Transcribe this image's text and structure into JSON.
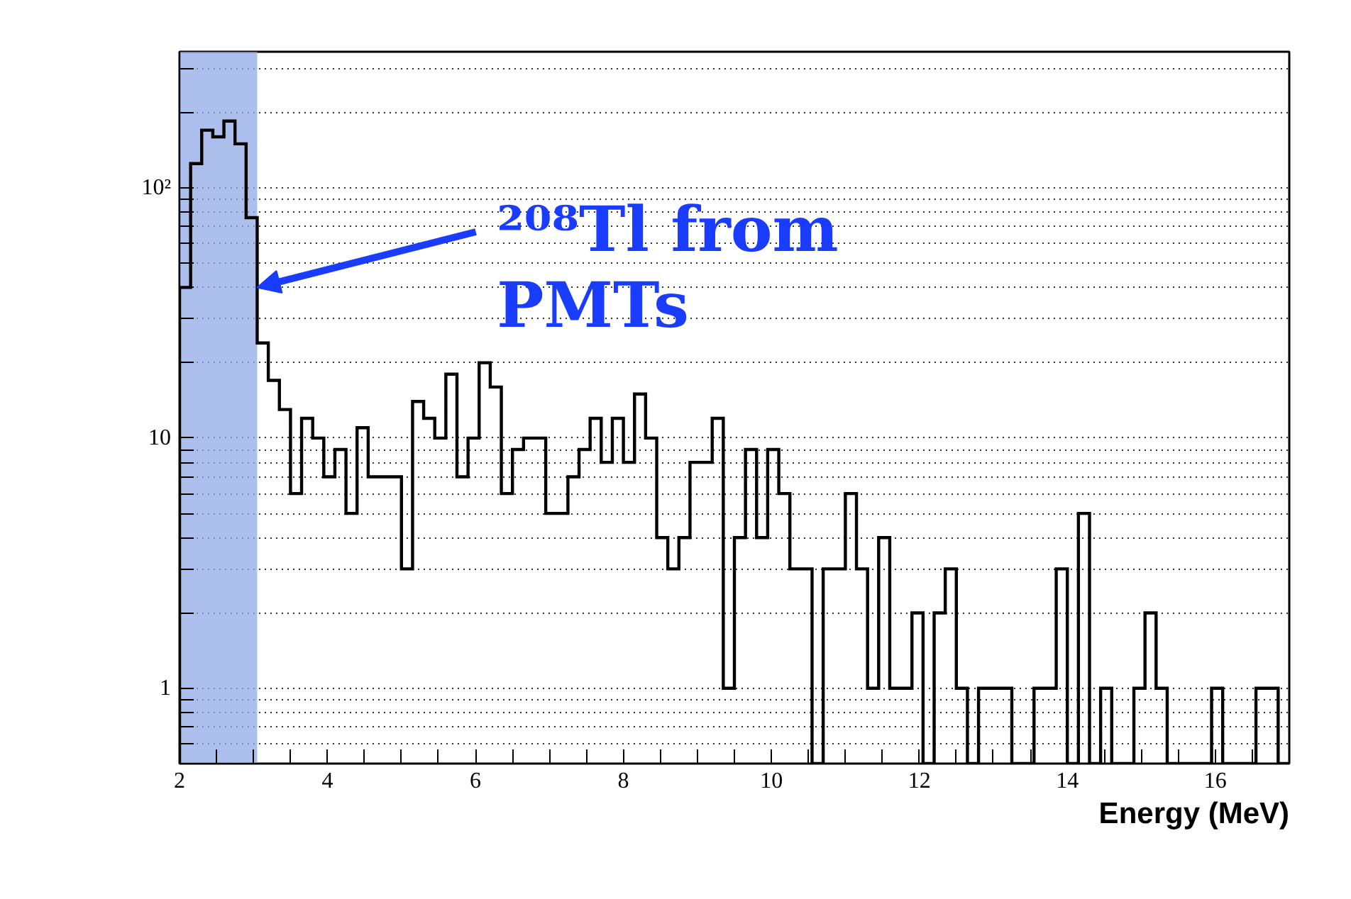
{
  "chart_data": {
    "type": "histogram",
    "xlabel": "Energy (MeV)",
    "bins": [
      2,
      2.15,
      2.3,
      2.45,
      2.6,
      2.75,
      2.9,
      3.05,
      3.2,
      3.35,
      3.5,
      3.65,
      3.8,
      3.95,
      4.1,
      4.25,
      4.4,
      4.55,
      4.7,
      4.85,
      5,
      5.15,
      5.3,
      5.45,
      5.6,
      5.75,
      5.9,
      6.05,
      6.2,
      6.35,
      6.5,
      6.65,
      6.8,
      6.95,
      7.1,
      7.25,
      7.4,
      7.55,
      7.7,
      7.85,
      8,
      8.15,
      8.3,
      8.45,
      8.6,
      8.75,
      8.9,
      9.05,
      9.2,
      9.35,
      9.5,
      9.65,
      9.8,
      9.95,
      10.1,
      10.25,
      10.4,
      10.55,
      10.7,
      10.85,
      11,
      11.15,
      11.3,
      11.45,
      11.6,
      11.75,
      11.9,
      12.05,
      12.2,
      12.35,
      12.5,
      12.65,
      12.8,
      12.95,
      13.1,
      13.25,
      13.4,
      13.55,
      13.7,
      13.85,
      14,
      14.15,
      14.3,
      14.45,
      14.6,
      14.75,
      14.9,
      15.05,
      15.2,
      15.35,
      15.5,
      15.65,
      15.8,
      15.95,
      16.1,
      16.25,
      16.4,
      16.55,
      16.7,
      16.85,
      17
    ],
    "values": [
      40,
      125,
      170,
      160,
      185,
      150,
      76,
      24,
      17,
      13,
      6,
      12,
      10,
      7,
      9,
      5,
      11,
      7,
      7,
      7,
      3,
      14,
      12,
      10,
      18,
      7,
      10,
      20,
      16,
      6,
      9,
      10,
      10,
      5,
      5,
      7,
      9,
      12,
      8,
      12,
      8,
      15,
      10,
      4,
      3,
      4,
      8,
      8,
      12,
      1,
      4,
      9,
      4,
      9,
      6,
      3,
      3,
      null,
      3,
      3,
      6,
      3,
      1,
      4,
      1,
      1,
      2,
      null,
      2,
      3,
      1,
      null,
      1,
      1,
      1,
      null,
      null,
      1,
      1,
      3,
      null,
      5,
      null,
      1,
      null,
      null,
      1,
      2,
      1,
      null,
      null,
      null,
      null,
      1,
      null,
      null,
      null,
      1,
      1,
      null
    ],
    "color": "#000000",
    "log": "y",
    "xlim": [
      2,
      17
    ],
    "ylim": [
      0.5,
      350
    ],
    "xticks": [
      2,
      {
        "value": 2.5,
        "label": null
      },
      {
        "value": 3,
        "label": null
      },
      {
        "value": 3.5,
        "label": null
      },
      4,
      {
        "value": 4.5,
        "label": null
      },
      {
        "value": 5,
        "label": null
      },
      {
        "value": 5.5,
        "label": null
      },
      6,
      {
        "value": 6.5,
        "label": null
      },
      {
        "value": 7,
        "label": null
      },
      {
        "value": 7.5,
        "label": null
      },
      8,
      {
        "value": 8.5,
        "label": null
      },
      {
        "value": 9,
        "label": null
      },
      {
        "value": 9.5,
        "label": null
      },
      10,
      {
        "value": 10.5,
        "label": null
      },
      {
        "value": 11,
        "label": null
      },
      {
        "value": 11.5,
        "label": null
      },
      12,
      {
        "value": 12.5,
        "label": null
      },
      {
        "value": 13,
        "label": null
      },
      {
        "value": 13.5,
        "label": null
      },
      14,
      {
        "value": 14.5,
        "label": null
      },
      {
        "value": 15,
        "label": null
      },
      {
        "value": 15.5,
        "label": null
      },
      16,
      {
        "value": 16.5,
        "label": null
      }
    ],
    "yticks": [
      {
        "value": 0.6,
        "label": null
      },
      {
        "value": 0.7,
        "label": null
      },
      {
        "value": 0.8,
        "label": null
      },
      {
        "value": 0.9,
        "label": null
      },
      1,
      {
        "value": 2,
        "label": null
      },
      {
        "value": 3,
        "label": null
      },
      {
        "value": 4,
        "label": null
      },
      {
        "value": 5,
        "label": null
      },
      {
        "value": 6,
        "label": null
      },
      {
        "value": 7,
        "label": null
      },
      {
        "value": 8,
        "label": null
      },
      {
        "value": 9,
        "label": null
      },
      10,
      {
        "value": 20,
        "label": null
      },
      {
        "value": 30,
        "label": null
      },
      {
        "value": 40,
        "label": null
      },
      {
        "value": 50,
        "label": null
      },
      {
        "value": 60,
        "label": null
      },
      {
        "value": 70,
        "label": null
      },
      {
        "value": 80,
        "label": null
      },
      {
        "value": 90,
        "label": null
      },
      {
        "value": 100,
        "label": "10²"
      },
      {
        "value": 200,
        "label": null
      },
      {
        "value": 300,
        "label": null
      }
    ],
    "grid": "y",
    "bands": [
      {
        "axis": "x",
        "from": 2,
        "to": 3.05,
        "color": "#8fa8e6"
      }
    ],
    "annotations": [
      {
        "text": "²⁰⁸Tl from\nPMTs",
        "x": 3.05,
        "y": 40
      }
    ]
  }
}
